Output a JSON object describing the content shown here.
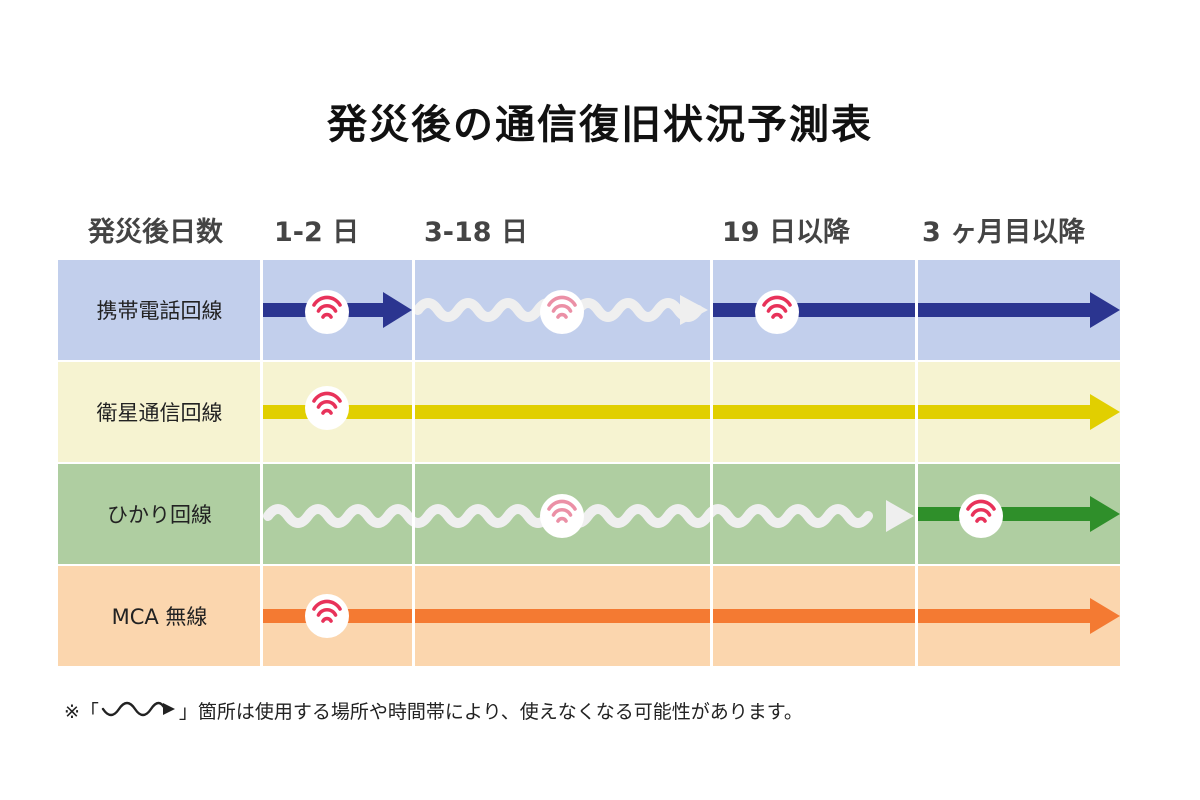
{
  "title": "発災後の通信復旧状況予測表",
  "header": {
    "days_label": "発災後日数",
    "periods": [
      "1-2 日",
      "3-18 日",
      "19 日以降",
      "3 ヶ月目以降"
    ]
  },
  "rows": [
    {
      "label": "携帯電話回線",
      "color": "#2b3590",
      "band": "#c2cfec"
    },
    {
      "label": "衛星通信回線",
      "color": "#e1cf00",
      "band": "#f6f3d1"
    },
    {
      "label": "ひかり回線",
      "color": "#2f8f2a",
      "band": "#afcea1"
    },
    {
      "label": "MCA 無線",
      "color": "#f47a32",
      "band": "#fbd6ae"
    }
  ],
  "colors": {
    "wifi": "#e8325a",
    "unstable": "#efefef"
  },
  "icons": {
    "available": "wifi-icon",
    "unstable": "wavy-arrow-icon"
  },
  "footnote": {
    "prefix": "※「",
    "suffix": "」箇所は使用する場所や時間帯により、使えなくなる可能性があります。"
  }
}
